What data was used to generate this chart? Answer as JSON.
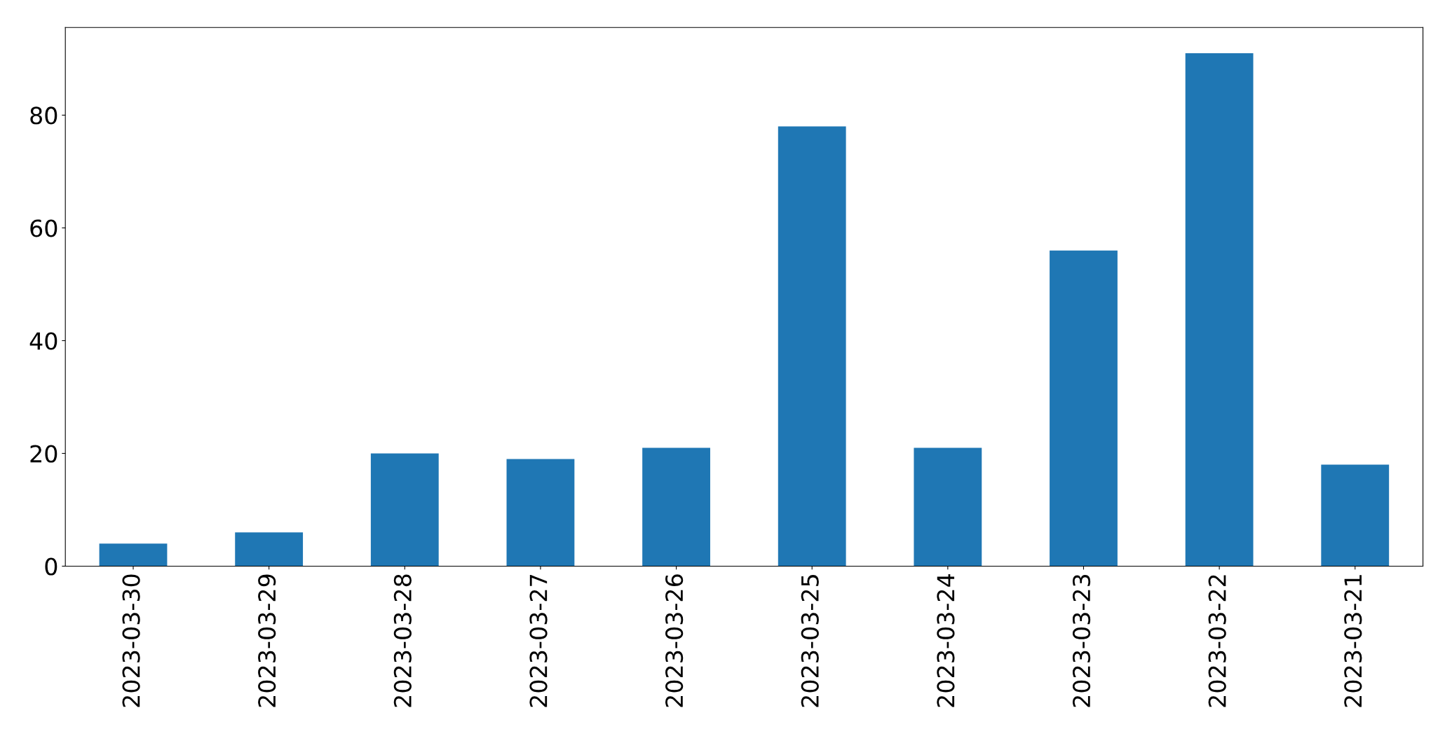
{
  "chart_data": {
    "type": "bar",
    "categories": [
      "2023-03-30",
      "2023-03-29",
      "2023-03-28",
      "2023-03-27",
      "2023-03-26",
      "2023-03-25",
      "2023-03-24",
      "2023-03-23",
      "2023-03-22",
      "2023-03-21"
    ],
    "values": [
      4,
      6,
      20,
      19,
      21,
      78,
      21,
      56,
      91,
      18
    ],
    "color": "#1f77b4",
    "ylim": [
      0,
      95.55
    ],
    "yticks": [
      0,
      20,
      40,
      60,
      80
    ],
    "grid": false,
    "legend": false
  }
}
